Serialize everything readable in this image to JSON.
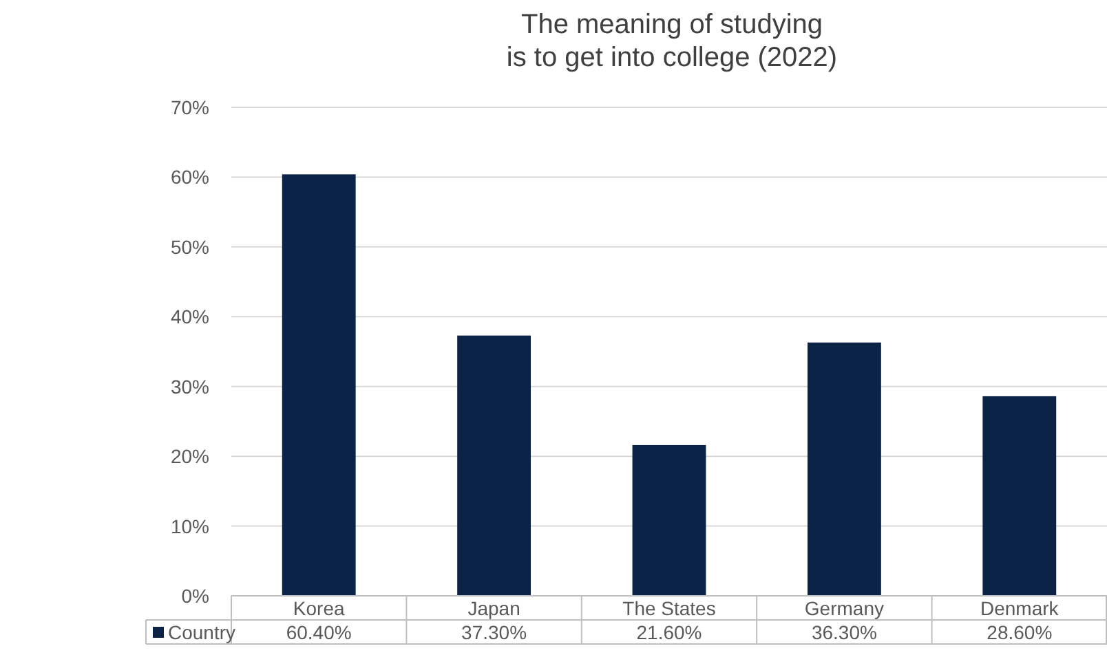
{
  "chart_data": {
    "type": "bar",
    "title": "The meaning of studying\nis to get into college (2022)",
    "categories": [
      "Korea",
      "Japan",
      "The States",
      "Germany",
      "Denmark"
    ],
    "series": [
      {
        "name": "Country",
        "color": "#0b2346",
        "values": [
          60.4,
          37.3,
          21.6,
          36.3,
          28.6
        ],
        "value_labels": [
          "60.40%",
          "37.30%",
          "21.60%",
          "36.30%",
          "28.60%"
        ]
      }
    ],
    "ylim": [
      0,
      70
    ],
    "yticks": [
      {
        "value": 0,
        "label": "0%"
      },
      {
        "value": 10,
        "label": "10%"
      },
      {
        "value": 20,
        "label": "20%"
      },
      {
        "value": 30,
        "label": "30%"
      },
      {
        "value": 40,
        "label": "40%"
      },
      {
        "value": 50,
        "label": "50%"
      },
      {
        "value": 60,
        "label": "60%"
      },
      {
        "value": 70,
        "label": "70%"
      }
    ],
    "grid": "y",
    "legend": "bottom left"
  }
}
